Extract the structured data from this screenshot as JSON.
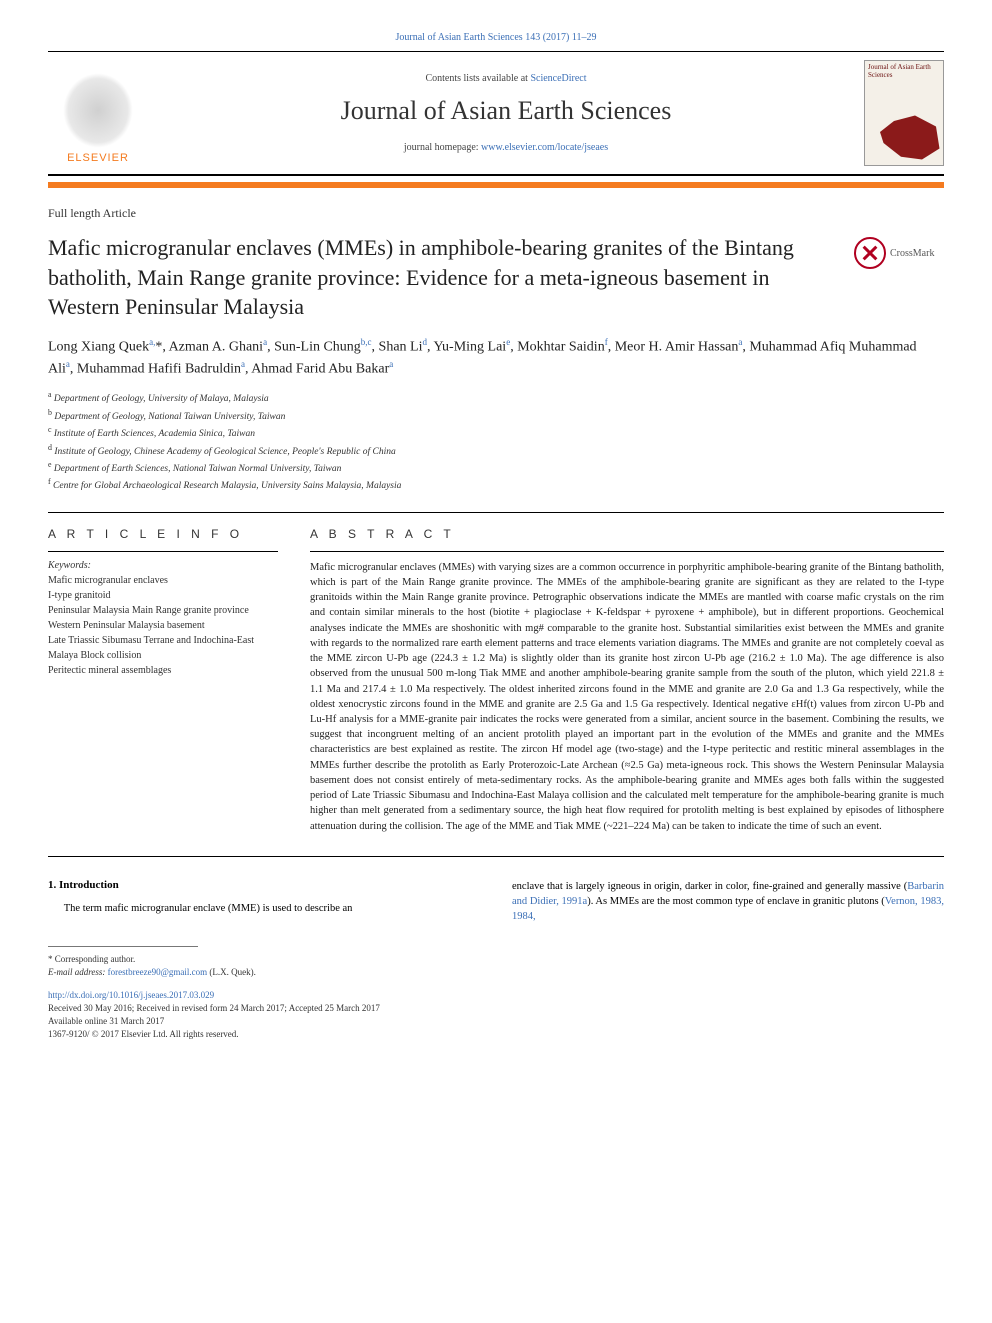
{
  "top_link": "Journal of Asian Earth Sciences 143 (2017) 11–29",
  "header": {
    "contents_prefix": "Contents lists available at ",
    "contents_link": "ScienceDirect",
    "journal_title": "Journal of Asian Earth Sciences",
    "homepage_prefix": "journal homepage: ",
    "homepage_link": "www.elsevier.com/locate/jseaes",
    "elsevier_label": "ELSEVIER",
    "cover_text": "Journal of Asian Earth Sciences"
  },
  "article_type": "Full length Article",
  "title": "Mafic microgranular enclaves (MMEs) in amphibole-bearing granites of the Bintang batholith, Main Range granite province: Evidence for a meta-igneous basement in Western Peninsular Malaysia",
  "crossmark_label": "CrossMark",
  "authors_html": "Long Xiang Quek<sup>a,</sup>*, Azman A. Ghani<sup>a</sup>, Sun-Lin Chung<sup>b,c</sup>, Shan Li<sup>d</sup>, Yu-Ming Lai<sup>e</sup>, Mokhtar Saidin<sup>f</sup>, Meor H. Amir Hassan<sup>a</sup>, Muhammad Afiq Muhammad Ali<sup>a</sup>, Muhammad Hafifi Badruldin<sup>a</sup>, Ahmad Farid Abu Bakar<sup>a</sup>",
  "affiliations": [
    {
      "sup": "a",
      "text": "Department of Geology, University of Malaya, Malaysia"
    },
    {
      "sup": "b",
      "text": "Department of Geology, National Taiwan University, Taiwan"
    },
    {
      "sup": "c",
      "text": "Institute of Earth Sciences, Academia Sinica, Taiwan"
    },
    {
      "sup": "d",
      "text": "Institute of Geology, Chinese Academy of Geological Science, People's Republic of China"
    },
    {
      "sup": "e",
      "text": "Department of Earth Sciences, National Taiwan Normal University, Taiwan"
    },
    {
      "sup": "f",
      "text": "Centre for Global Archaeological Research Malaysia, University Sains Malaysia, Malaysia"
    }
  ],
  "article_info_heading": "A R T I C L E  I N F O",
  "keywords_label": "Keywords:",
  "keywords": [
    "Mafic microgranular enclaves",
    "I-type granitoid",
    "Peninsular Malaysia Main Range granite province",
    "Western Peninsular Malaysia basement",
    "Late Triassic Sibumasu Terrane and Indochina-East Malaya Block collision",
    "Peritectic mineral assemblages"
  ],
  "abstract_heading": "A B S T R A C T",
  "abstract": "Mafic microgranular enclaves (MMEs) with varying sizes are a common occurrence in porphyritic amphibole-bearing granite of the Bintang batholith, which is part of the Main Range granite province. The MMEs of the amphibole-bearing granite are significant as they are related to the I-type granitoids within the Main Range granite province. Petrographic observations indicate the MMEs are mantled with coarse mafic crystals on the rim and contain similar minerals to the host (biotite + plagioclase + K-feldspar + pyroxene + amphibole), but in different proportions. Geochemical analyses indicate the MMEs are shoshonitic with mg# comparable to the granite host. Substantial similarities exist between the MMEs and granite with regards to the normalized rare earth element patterns and trace elements variation diagrams. The MMEs and granite are not completely coeval as the MME zircon U-Pb age (224.3 ± 1.2 Ma) is slightly older than its granite host zircon U-Pb age (216.2 ± 1.0 Ma). The age difference is also observed from the unusual 500 m-long Tiak MME and another amphibole-bearing granite sample from the south of the pluton, which yield 221.8 ± 1.1 Ma and 217.4 ± 1.0 Ma respectively. The oldest inherited zircons found in the MME and granite are 2.0 Ga and 1.3 Ga respectively, while the oldest xenocrystic zircons found in the MME and granite are 2.5 Ga and 1.5 Ga respectively. Identical negative εHf(t) values from zircon U-Pb and Lu-Hf analysis for a MME-granite pair indicates the rocks were generated from a similar, ancient source in the basement. Combining the results, we suggest that incongruent melting of an ancient protolith played an important part in the evolution of the MMEs and granite and the MMEs characteristics are best explained as restite. The zircon Hf model age (two-stage) and the I-type peritectic and restitic mineral assemblages in the MMEs further describe the protolith as Early Proterozoic-Late Archean (≈2.5 Ga) meta-igneous rock. This shows the Western Peninsular Malaysia basement does not consist entirely of meta-sedimentary rocks. As the amphibole-bearing granite and MMEs ages both falls within the suggested period of Late Triassic Sibumasu and Indochina-East Malaya collision and the calculated melt temperature for the amphibole-bearing granite is much higher than melt generated from a sedimentary source, the high heat flow required for protolith melting is best explained by episodes of lithosphere attenuation during the collision. The age of the MME and Tiak MME (~221–224 Ma) can be taken to indicate the time of such an event.",
  "intro": {
    "heading": "1. Introduction",
    "left_text": "The term mafic microgranular enclave (MME) is used to describe an",
    "right_text_parts": [
      "enclave that is largely igneous in origin, darker in color, fine-grained and generally massive (",
      "Barbarin and Didier, 1991a",
      "). As MMEs are the most common type of enclave in granitic plutons (",
      "Vernon, 1983, 1984,"
    ]
  },
  "footnote": {
    "corresponding": "* Corresponding author.",
    "email_label": "E-mail address: ",
    "email_link": "forestbreeze90@gmail.com",
    "email_suffix": " (L.X. Quek)."
  },
  "footer": {
    "doi": "http://dx.doi.org/10.1016/j.jseaes.2017.03.029",
    "received": "Received 30 May 2016; Received in revised form 24 March 2017; Accepted 25 March 2017",
    "available": "Available online 31 March 2017",
    "copyright": "1367-9120/ © 2017 Elsevier Ltd. All rights reserved."
  },
  "colors": {
    "orange": "#f47b20",
    "link_blue": "#3b6fb6",
    "cover_map": "#8b1a1a"
  }
}
